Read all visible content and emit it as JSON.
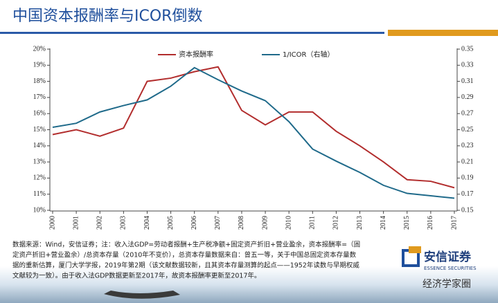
{
  "chart_data": {
    "type": "line",
    "title": "中国资本报酬率与ICOR倒数",
    "categories": [
      "2000",
      "2001",
      "2002",
      "2003",
      "2004",
      "2005",
      "2006",
      "2007",
      "2008",
      "2009",
      "2010",
      "2011",
      "2012",
      "2013",
      "2014",
      "2015",
      "2016",
      "2017"
    ],
    "series": [
      {
        "name": "资本报酬率",
        "color": "#b22d2d",
        "values": [
          14.7,
          15.0,
          14.6,
          15.1,
          18.0,
          18.2,
          18.6,
          18.9,
          16.2,
          15.3,
          16.1,
          16.1,
          14.9,
          14.0,
          13.0,
          11.9,
          11.8,
          11.4
        ]
      },
      {
        "name": "1/ICOR（右轴）",
        "color": "#1f6a8a",
        "axis": "y2",
        "values": [
          0.253,
          0.258,
          0.272,
          0.28,
          0.287,
          0.304,
          0.327,
          0.312,
          0.298,
          0.286,
          0.26,
          0.226,
          0.211,
          0.197,
          0.181,
          0.171,
          0.168,
          0.165
        ]
      }
    ],
    "ylim": [
      10,
      20
    ],
    "yticks": [
      {
        "value": 10,
        "label": "10%"
      },
      {
        "value": 11,
        "label": "11%"
      },
      {
        "value": 12,
        "label": "12%"
      },
      {
        "value": 13,
        "label": "13%"
      },
      {
        "value": 14,
        "label": "14%"
      },
      {
        "value": 15,
        "label": "15%"
      },
      {
        "value": 16,
        "label": "16%"
      },
      {
        "value": 17,
        "label": "17%"
      },
      {
        "value": 18,
        "label": "18%"
      },
      {
        "value": 19,
        "label": "19%"
      },
      {
        "value": 20,
        "label": "20%"
      }
    ],
    "y2lim": [
      0.15,
      0.35
    ],
    "y2ticks": [
      0.15,
      0.17,
      0.19,
      0.21,
      0.23,
      0.25,
      0.27,
      0.29,
      0.31,
      0.33,
      0.35
    ],
    "grid": false,
    "legend": "top",
    "note": [
      "数据来源：Wind，安信证券；注：收入法GDP=劳动者报酬+生产税净额+固定资产折旧+营业盈余，资本报酬率=（固",
      "定资产折旧+营业盈余）/总资本存量（2010年不变价），总资本存量数据来自：曾五一等，关于中国总固定资本存量数",
      "据的重新估算，厦门大学学报，2019年第2期（该文献数据较新，且其资本存量测算的起点——1952年读数与早期权威",
      "文献较为一致）。由于收入法GDP数据更新至2017年，故资本报酬率更新至2017年。"
    ]
  },
  "logo": {
    "name": "安信证券",
    "sub": "ESSENCE SECURITIES"
  },
  "watermark": "经济学家圈"
}
